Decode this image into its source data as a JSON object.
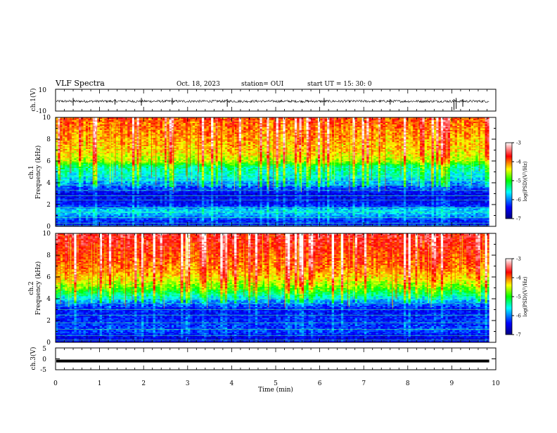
{
  "header": {
    "title": "VLF Spectra",
    "date": "Oct. 18, 2023",
    "station": "station= OUI",
    "start": "start  UT =   15: 30: 0"
  },
  "chart_data": [
    {
      "type": "line",
      "ylabel": "ch.1(V)",
      "ylim": [
        -10,
        10
      ],
      "yticks": [
        "10",
        "-10"
      ],
      "xlim": [
        0,
        10
      ],
      "baseline": -1,
      "spikes": [
        {
          "t": 0.4,
          "lo": -5,
          "hi": 2
        },
        {
          "t": 1.35,
          "lo": -4,
          "hi": 1
        },
        {
          "t": 1.95,
          "lo": -5,
          "hi": 2
        },
        {
          "t": 2.65,
          "lo": -4,
          "hi": 2
        },
        {
          "t": 3.9,
          "lo": -6,
          "hi": 1
        },
        {
          "t": 6.1,
          "lo": -5,
          "hi": 2
        },
        {
          "t": 7.6,
          "lo": -4,
          "hi": 1
        },
        {
          "t": 9.05,
          "lo": -9,
          "hi": 1
        },
        {
          "t": 9.1,
          "lo": -8,
          "hi": 2
        },
        {
          "t": 9.25,
          "lo": -6,
          "hi": 1
        }
      ]
    },
    {
      "type": "heatmap",
      "ylabel_channel": "ch.1",
      "ylabel": "Frequency  (kHz)",
      "ylim": [
        0,
        10
      ],
      "yticks": [
        "0",
        "2",
        "4",
        "6",
        "8",
        "10"
      ],
      "xlim": [
        0,
        9.85
      ],
      "colorbar": {
        "label": "log(PSD)(V²/Hz)",
        "range": [
          -7,
          -3
        ],
        "ticks": [
          "-3",
          "-4",
          "-5",
          "-6",
          "-7"
        ]
      },
      "bands": [
        {
          "f": 10,
          "level": -3.9
        },
        {
          "f": 8.5,
          "level": -4.1
        },
        {
          "f": 7.0,
          "level": -4.3
        },
        {
          "f": 6.0,
          "level": -4.6
        },
        {
          "f": 5.5,
          "level": -5.3
        },
        {
          "f": 4.5,
          "level": -5.6
        },
        {
          "f": 4.0,
          "level": -5.9
        },
        {
          "f": 3.0,
          "level": -6.5
        },
        {
          "f": 2.0,
          "level": -6.4
        },
        {
          "f": 1.5,
          "level": -5.7
        },
        {
          "f": 1.2,
          "level": -5.8
        },
        {
          "f": 0.5,
          "level": -6.3
        },
        {
          "f": 0.0,
          "level": -6.5
        }
      ],
      "lines_khz": [
        0.1,
        0.3,
        0.8,
        1.3,
        1.7,
        2.4,
        2.8,
        3.3,
        3.8,
        4.2,
        4.6
      ]
    },
    {
      "type": "heatmap",
      "ylabel_channel": "ch.2",
      "ylabel": "Frequency  (kHz)",
      "ylim": [
        0,
        10
      ],
      "yticks": [
        "0",
        "2",
        "4",
        "6",
        "8",
        "10"
      ],
      "xlim": [
        0,
        9.85
      ],
      "colorbar": {
        "label": "log(PSD)(V²/Hz)",
        "range": [
          -7,
          -3
        ],
        "ticks": [
          "-3",
          "-4",
          "-5",
          "-6",
          "-7"
        ]
      },
      "bands": [
        {
          "f": 10,
          "level": -3.6
        },
        {
          "f": 8.5,
          "level": -3.8
        },
        {
          "f": 7.0,
          "level": -4.0
        },
        {
          "f": 6.0,
          "level": -4.3
        },
        {
          "f": 5.0,
          "level": -4.8
        },
        {
          "f": 4.3,
          "level": -5.4
        },
        {
          "f": 3.8,
          "level": -5.9
        },
        {
          "f": 3.0,
          "level": -6.4
        },
        {
          "f": 2.0,
          "level": -6.3
        },
        {
          "f": 1.0,
          "level": -6.2
        },
        {
          "f": 0.5,
          "level": -6.5
        },
        {
          "f": 0.0,
          "level": -6.6
        }
      ],
      "lines_khz": [
        0.2,
        0.6,
        1.2,
        1.8,
        2.5,
        3.0,
        3.6,
        4.0,
        4.4
      ]
    },
    {
      "type": "line",
      "ylabel": "ch.3(V)",
      "ylim": [
        -5,
        5
      ],
      "yticks": [
        "5",
        "0",
        "-5"
      ],
      "xlim": [
        0,
        10
      ],
      "value": -1
    }
  ],
  "xaxis": {
    "label": "Time  (min)",
    "range": [
      0,
      10
    ],
    "ticks": [
      "0",
      "1",
      "2",
      "3",
      "4",
      "5",
      "6",
      "7",
      "8",
      "9",
      "10"
    ]
  }
}
